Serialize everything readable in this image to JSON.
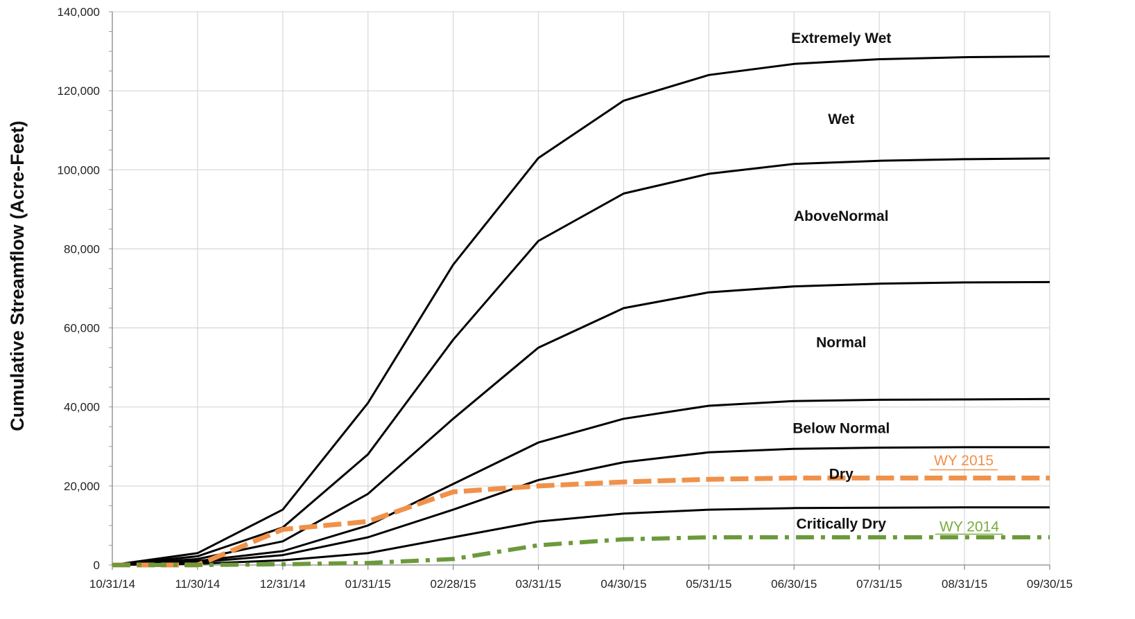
{
  "chart_data": {
    "type": "line",
    "title": "",
    "xlabel": "",
    "ylabel": "Cumulative Streamflow (Acre-Feet)",
    "ylim": [
      0,
      140000
    ],
    "yticks": [
      0,
      20000,
      40000,
      60000,
      80000,
      100000,
      120000,
      140000
    ],
    "ytick_labels": [
      "0",
      "20,000",
      "40,000",
      "60,000",
      "80,000",
      "100,000",
      "120,000",
      "140,000"
    ],
    "x": [
      "10/31/14",
      "11/30/14",
      "12/31/14",
      "01/31/15",
      "02/28/15",
      "03/31/15",
      "04/30/15",
      "05/31/15",
      "06/30/15",
      "07/31/15",
      "08/31/15",
      "09/30/15"
    ],
    "grid": true,
    "series": [
      {
        "values": [
          0,
          3000,
          14000,
          41000,
          76000,
          103000,
          117500,
          124000,
          126800,
          128000,
          128500,
          128700
        ],
        "color": "#000000",
        "style": "solid"
      },
      {
        "values": [
          0,
          2200,
          9500,
          28000,
          57000,
          82000,
          94000,
          99000,
          101500,
          102300,
          102700,
          102900
        ],
        "color": "#000000",
        "style": "solid"
      },
      {
        "values": [
          0,
          1500,
          6000,
          18000,
          37000,
          55000,
          65000,
          69000,
          70500,
          71200,
          71500,
          71600
        ],
        "color": "#000000",
        "style": "solid"
      },
      {
        "values": [
          0,
          1000,
          3500,
          10000,
          20500,
          31000,
          37000,
          40300,
          41500,
          41800,
          41900,
          42000
        ],
        "color": "#000000",
        "style": "solid"
      },
      {
        "values": [
          0,
          700,
          2500,
          7000,
          14000,
          21500,
          26000,
          28500,
          29400,
          29700,
          29800,
          29800
        ],
        "color": "#000000",
        "style": "solid"
      },
      {
        "values": [
          0,
          300,
          1200,
          3000,
          7000,
          11000,
          13000,
          14000,
          14400,
          14500,
          14600,
          14600
        ],
        "color": "#000000",
        "style": "solid"
      },
      {
        "name": "WY 2015",
        "values": [
          0,
          0,
          9000,
          11000,
          18500,
          20000,
          21000,
          21700,
          22000,
          22000,
          22000,
          22000
        ],
        "color": "#f0914a",
        "style": "dashed"
      },
      {
        "name": "WY 2014",
        "values": [
          0,
          0,
          200,
          500,
          1500,
          5000,
          6500,
          7000,
          7000,
          7000,
          7000,
          7000
        ],
        "color": "#6b9a3a",
        "style": "dashdot"
      }
    ],
    "annotations": [
      {
        "text": "Extremely Wet",
        "x": "06/30/15",
        "y": 133500
      },
      {
        "text": "Wet",
        "x": "06/30/15",
        "y": 113000
      },
      {
        "text": "AboveNormal",
        "x": "06/30/15",
        "y": 88500
      },
      {
        "text": "Normal",
        "x": "06/30/15",
        "y": 56500
      },
      {
        "text": "Below Normal",
        "x": "06/30/15",
        "y": 34800
      },
      {
        "text": "Dry",
        "x": "06/30/15",
        "y": 23200
      },
      {
        "text": "Critically Dry",
        "x": "06/30/15",
        "y": 10600
      }
    ],
    "series_labels": [
      {
        "text": "WY 2015",
        "color": "#f0914a"
      },
      {
        "text": "WY 2014",
        "color": "#7aab40"
      }
    ]
  }
}
